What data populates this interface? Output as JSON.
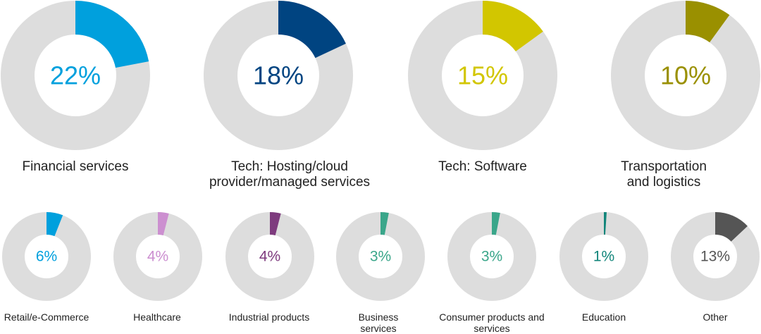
{
  "chart_data": {
    "type": "pie",
    "title": "",
    "track_color": "#dddddd",
    "segments": [
      {
        "label": "Financial services",
        "value": 22,
        "display": "22%",
        "color": "#00a0dd"
      },
      {
        "label": "Tech: Hosting/cloud provider/managed services",
        "value": 18,
        "display": "18%",
        "color": "#004481"
      },
      {
        "label": "Tech: Software",
        "value": 15,
        "display": "15%",
        "color": "#d2c600"
      },
      {
        "label": "Transportation and logistics",
        "value": 10,
        "display": "10%",
        "color": "#9a9000"
      },
      {
        "label": "Retail/e-Commerce",
        "value": 6,
        "display": "6%",
        "color": "#00a0dd"
      },
      {
        "label": "Healthcare",
        "value": 4,
        "display": "4%",
        "color": "#cc8fd0"
      },
      {
        "label": "Industrial products",
        "value": 4,
        "display": "4%",
        "color": "#7e3b7e"
      },
      {
        "label": "Business services",
        "value": 3,
        "display": "3%",
        "color": "#3aa68a"
      },
      {
        "label": "Consumer products and services",
        "value": 3,
        "display": "3%",
        "color": "#3aa68a"
      },
      {
        "label": "Education",
        "value": 1,
        "display": "1%",
        "color": "#12857a"
      },
      {
        "label": "Other",
        "value": 13,
        "display": "13%",
        "color": "#555555"
      }
    ]
  }
}
